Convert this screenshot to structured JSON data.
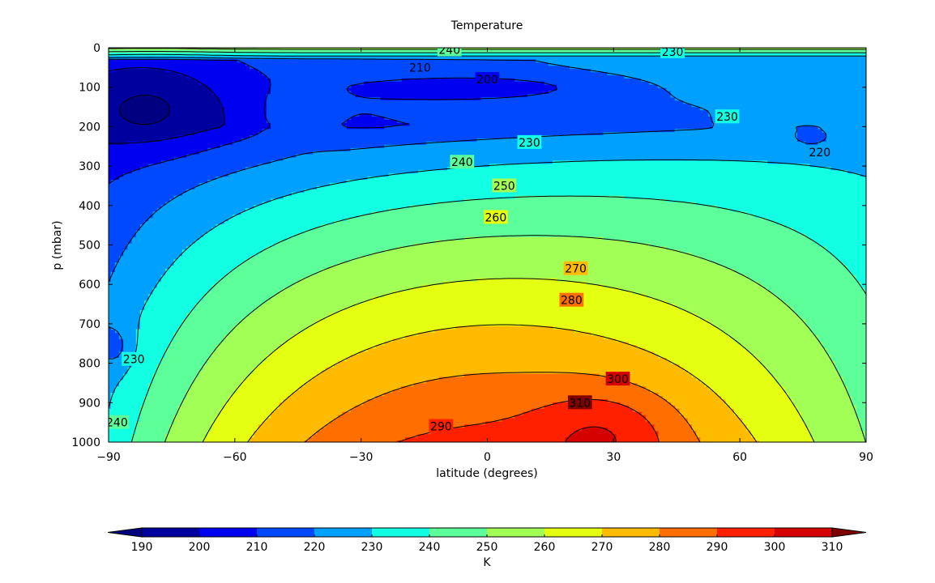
{
  "chart_data": {
    "type": "contour",
    "title": "Temperature",
    "xlabel": "latitude (degrees)",
    "ylabel": "p (mbar)",
    "xlim": [
      -90,
      90
    ],
    "ylim": [
      1000,
      0
    ],
    "x_ticks": [
      -90,
      -60,
      -30,
      0,
      30,
      60,
      90
    ],
    "x_tick_labels": [
      "−90",
      "−60",
      "−30",
      "0",
      "30",
      "60",
      "90"
    ],
    "y_ticks": [
      0,
      100,
      200,
      300,
      400,
      500,
      600,
      700,
      800,
      900,
      1000
    ],
    "levels": [
      190,
      200,
      210,
      220,
      230,
      240,
      250,
      260,
      270,
      280,
      290,
      300,
      310
    ],
    "colorbar": {
      "label": "K",
      "extend": "both",
      "tick_labels": [
        "190",
        "200",
        "210",
        "220",
        "230",
        "240",
        "250",
        "260",
        "270",
        "280",
        "290",
        "300",
        "310"
      ],
      "colors": [
        "#000080",
        "#00009e",
        "#0000f1",
        "#0049ff",
        "#00a0ff",
        "#13ffe3",
        "#5cff9a",
        "#a1ff56",
        "#e4ff12",
        "#ffbb00",
        "#ff6e00",
        "#ff2000",
        "#d50000",
        "#800000"
      ]
    },
    "contour_labels": [
      {
        "text": "210",
        "lat": -16,
        "p": 50
      },
      {
        "text": "200",
        "lat": 0,
        "p": 80
      },
      {
        "text": "230",
        "lat": 10,
        "p": 240
      },
      {
        "text": "240",
        "lat": -6,
        "p": 290
      },
      {
        "text": "250",
        "lat": 4,
        "p": 350
      },
      {
        "text": "260",
        "lat": 2,
        "p": 430
      },
      {
        "text": "270",
        "lat": 21,
        "p": 560
      },
      {
        "text": "280",
        "lat": 20,
        "p": 640
      },
      {
        "text": "290",
        "lat": -11,
        "p": 960
      },
      {
        "text": "300",
        "lat": 31,
        "p": 840
      },
      {
        "text": "310",
        "lat": 22,
        "p": 900
      },
      {
        "text": "230",
        "lat": 44,
        "p": 10
      },
      {
        "text": "240",
        "lat": -9,
        "p": 5
      },
      {
        "text": "230",
        "lat": 57,
        "p": 175
      },
      {
        "text": "220",
        "lat": 79,
        "p": 265
      },
      {
        "text": "230",
        "lat": -84,
        "p": 790
      },
      {
        "text": "240",
        "lat": -88,
        "p": 950
      }
    ]
  }
}
